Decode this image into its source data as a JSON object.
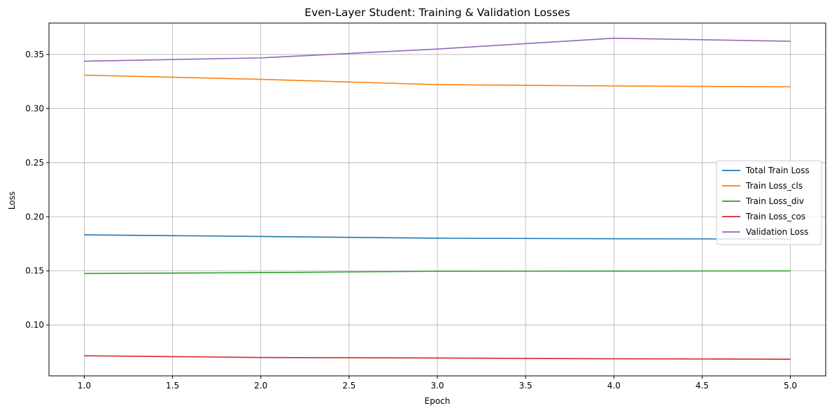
{
  "chart_data": {
    "type": "line",
    "title": "Even-Layer Student: Training & Validation Losses",
    "xlabel": "Epoch",
    "ylabel": "Loss",
    "xlim": [
      0.8,
      5.2
    ],
    "ylim": [
      0.053,
      0.379
    ],
    "x": [
      1,
      2,
      3,
      4,
      5
    ],
    "xticks": [
      1.0,
      1.5,
      2.0,
      2.5,
      3.0,
      3.5,
      4.0,
      4.5,
      5.0
    ],
    "xtick_labels": [
      "1.0",
      "1.5",
      "2.0",
      "2.5",
      "3.0",
      "3.5",
      "4.0",
      "4.5",
      "5.0"
    ],
    "yticks": [
      0.1,
      0.15,
      0.2,
      0.25,
      0.3,
      0.35
    ],
    "ytick_labels": [
      "0.10",
      "0.15",
      "0.20",
      "0.25",
      "0.30",
      "0.35"
    ],
    "grid": true,
    "legend_position": "center-right",
    "series": [
      {
        "name": "Total Train Loss",
        "color": "#1f77b4",
        "values": [
          0.1833,
          0.1818,
          0.1802,
          0.1797,
          0.1794
        ]
      },
      {
        "name": "Train Loss_cls",
        "color": "#ff7f0e",
        "values": [
          0.3309,
          0.327,
          0.3221,
          0.3209,
          0.3201
        ]
      },
      {
        "name": "Train Loss_div",
        "color": "#2ca02c",
        "values": [
          0.1476,
          0.1484,
          0.1497,
          0.1498,
          0.15
        ]
      },
      {
        "name": "Train Loss_cos",
        "color": "#d62728",
        "values": [
          0.0716,
          0.07,
          0.0695,
          0.0688,
          0.0684
        ]
      },
      {
        "name": "Validation Loss",
        "color": "#9467bd",
        "values": [
          0.3438,
          0.3468,
          0.355,
          0.365,
          0.3622
        ]
      }
    ]
  }
}
